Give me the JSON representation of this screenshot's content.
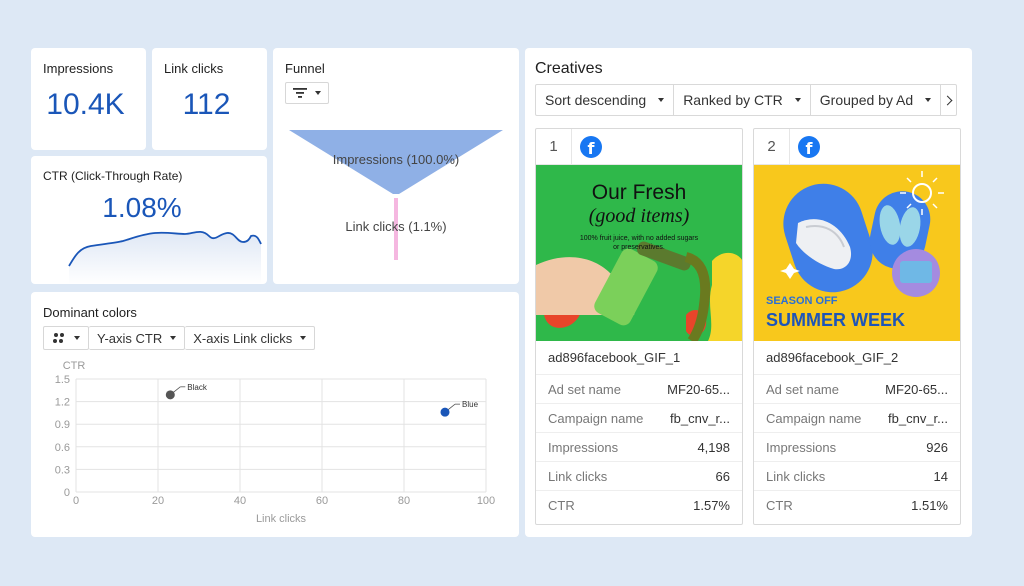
{
  "kpis": {
    "impressions": {
      "label": "Impressions",
      "value": "10.4K"
    },
    "link_clicks": {
      "label": "Link clicks",
      "value": "112"
    },
    "ctr": {
      "label": "CTR (Click-Through Rate)",
      "value": "1.08%"
    }
  },
  "funnel": {
    "title": "Funnel",
    "stages": [
      {
        "label": "Impressions (100.0%)",
        "percent": 100.0
      },
      {
        "label": "Link clicks (1.1%)",
        "percent": 1.1
      }
    ]
  },
  "dominant_colors": {
    "title": "Dominant colors",
    "controls": {
      "y_axis": "Y-axis CTR",
      "x_axis": "X-axis Link clicks"
    }
  },
  "chart_data": {
    "type": "scatter",
    "ylabel": "CTR",
    "xlabel": "Link clicks",
    "xlim": [
      0,
      100
    ],
    "ylim": [
      0,
      1.5
    ],
    "x_ticks": [
      "0",
      "20",
      "40",
      "60",
      "80",
      "100"
    ],
    "y_ticks": [
      "0",
      "0.3",
      "0.6",
      "0.9",
      "1.2",
      "1.5"
    ],
    "grid": true,
    "points": [
      {
        "label": "Black",
        "x": 23,
        "y": 1.29,
        "color": "#555555"
      },
      {
        "label": "Blue",
        "x": 90,
        "y": 1.06,
        "color": "#1a56b8"
      }
    ]
  },
  "creatives": {
    "title": "Creatives",
    "sort_options": [
      "Sort descending",
      "Ranked by CTR",
      "Grouped by Ad"
    ],
    "items": [
      {
        "rank": "1",
        "name": "ad896facebook_GIF_1",
        "ad_headline": "Our Fresh",
        "ad_headline2": "(good items)",
        "ad_sub1": "100% fruit juice, with no added sugars",
        "ad_sub2": "or preservatives.",
        "rows": [
          {
            "key": "Ad set name",
            "value": "MF20-65..."
          },
          {
            "key": "Campaign name",
            "value": "fb_cnv_r..."
          },
          {
            "key": "Impressions",
            "value": "4,198"
          },
          {
            "key": "Link clicks",
            "value": "66"
          },
          {
            "key": "CTR",
            "value": "1.57%"
          }
        ]
      },
      {
        "rank": "2",
        "name": "ad896facebook_GIF_2",
        "ad_line1": "SEASON OFF",
        "ad_line2": "SUMMER WEEK",
        "rows": [
          {
            "key": "Ad set name",
            "value": "MF20-65..."
          },
          {
            "key": "Campaign name",
            "value": "fb_cnv_r..."
          },
          {
            "key": "Impressions",
            "value": "926"
          },
          {
            "key": "Link clicks",
            "value": "14"
          },
          {
            "key": "CTR",
            "value": "1.51%"
          }
        ]
      }
    ]
  },
  "colors": {
    "accent": "#1a56b8",
    "background": "#dde8f5",
    "facebook": "#1877f2"
  }
}
